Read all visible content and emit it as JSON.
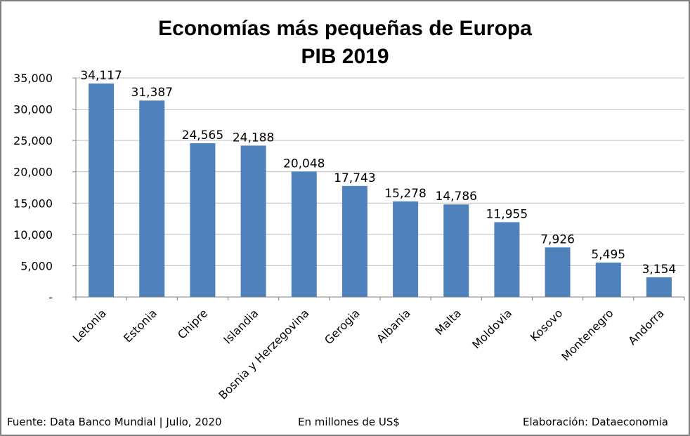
{
  "chart_data": {
    "type": "bar",
    "title": "Economías más pequeñas de Europa",
    "subtitle": "PIB 2019",
    "categories": [
      "Letonia",
      "Estonia",
      "Chipre",
      "Islandia",
      "Bosnia y Herzegovina",
      "Gerogia",
      "Albania",
      "Malta",
      "Moldovia",
      "Kosovo",
      "Montenegro",
      "Andorra"
    ],
    "values": [
      34117,
      31387,
      24565,
      24188,
      20048,
      17743,
      15278,
      14786,
      11955,
      7926,
      5495,
      3154
    ],
    "data_labels": [
      "34,117",
      "31,387",
      "24,565",
      "24,188",
      "20,048",
      "17,743",
      "15,278",
      "14,786",
      "11,955",
      "7,926",
      "5,495",
      "3,154"
    ],
    "ylim": [
      0,
      35000
    ],
    "yticks": [
      0,
      5000,
      10000,
      15000,
      20000,
      25000,
      30000,
      35000
    ],
    "ytick_labels": [
      "-",
      "5,000",
      "10,000",
      "15,000",
      "20,000",
      "25,000",
      "30,000",
      "35,000"
    ],
    "grid": true,
    "bar_color": "#4f81bd",
    "grid_color": "#bfbfbf"
  },
  "footer": {
    "source": "Fuente: Data Banco Mundial | Julio, 2020",
    "unit": "En millones de US$",
    "credit": "Elaboración: Dataeconomia"
  }
}
